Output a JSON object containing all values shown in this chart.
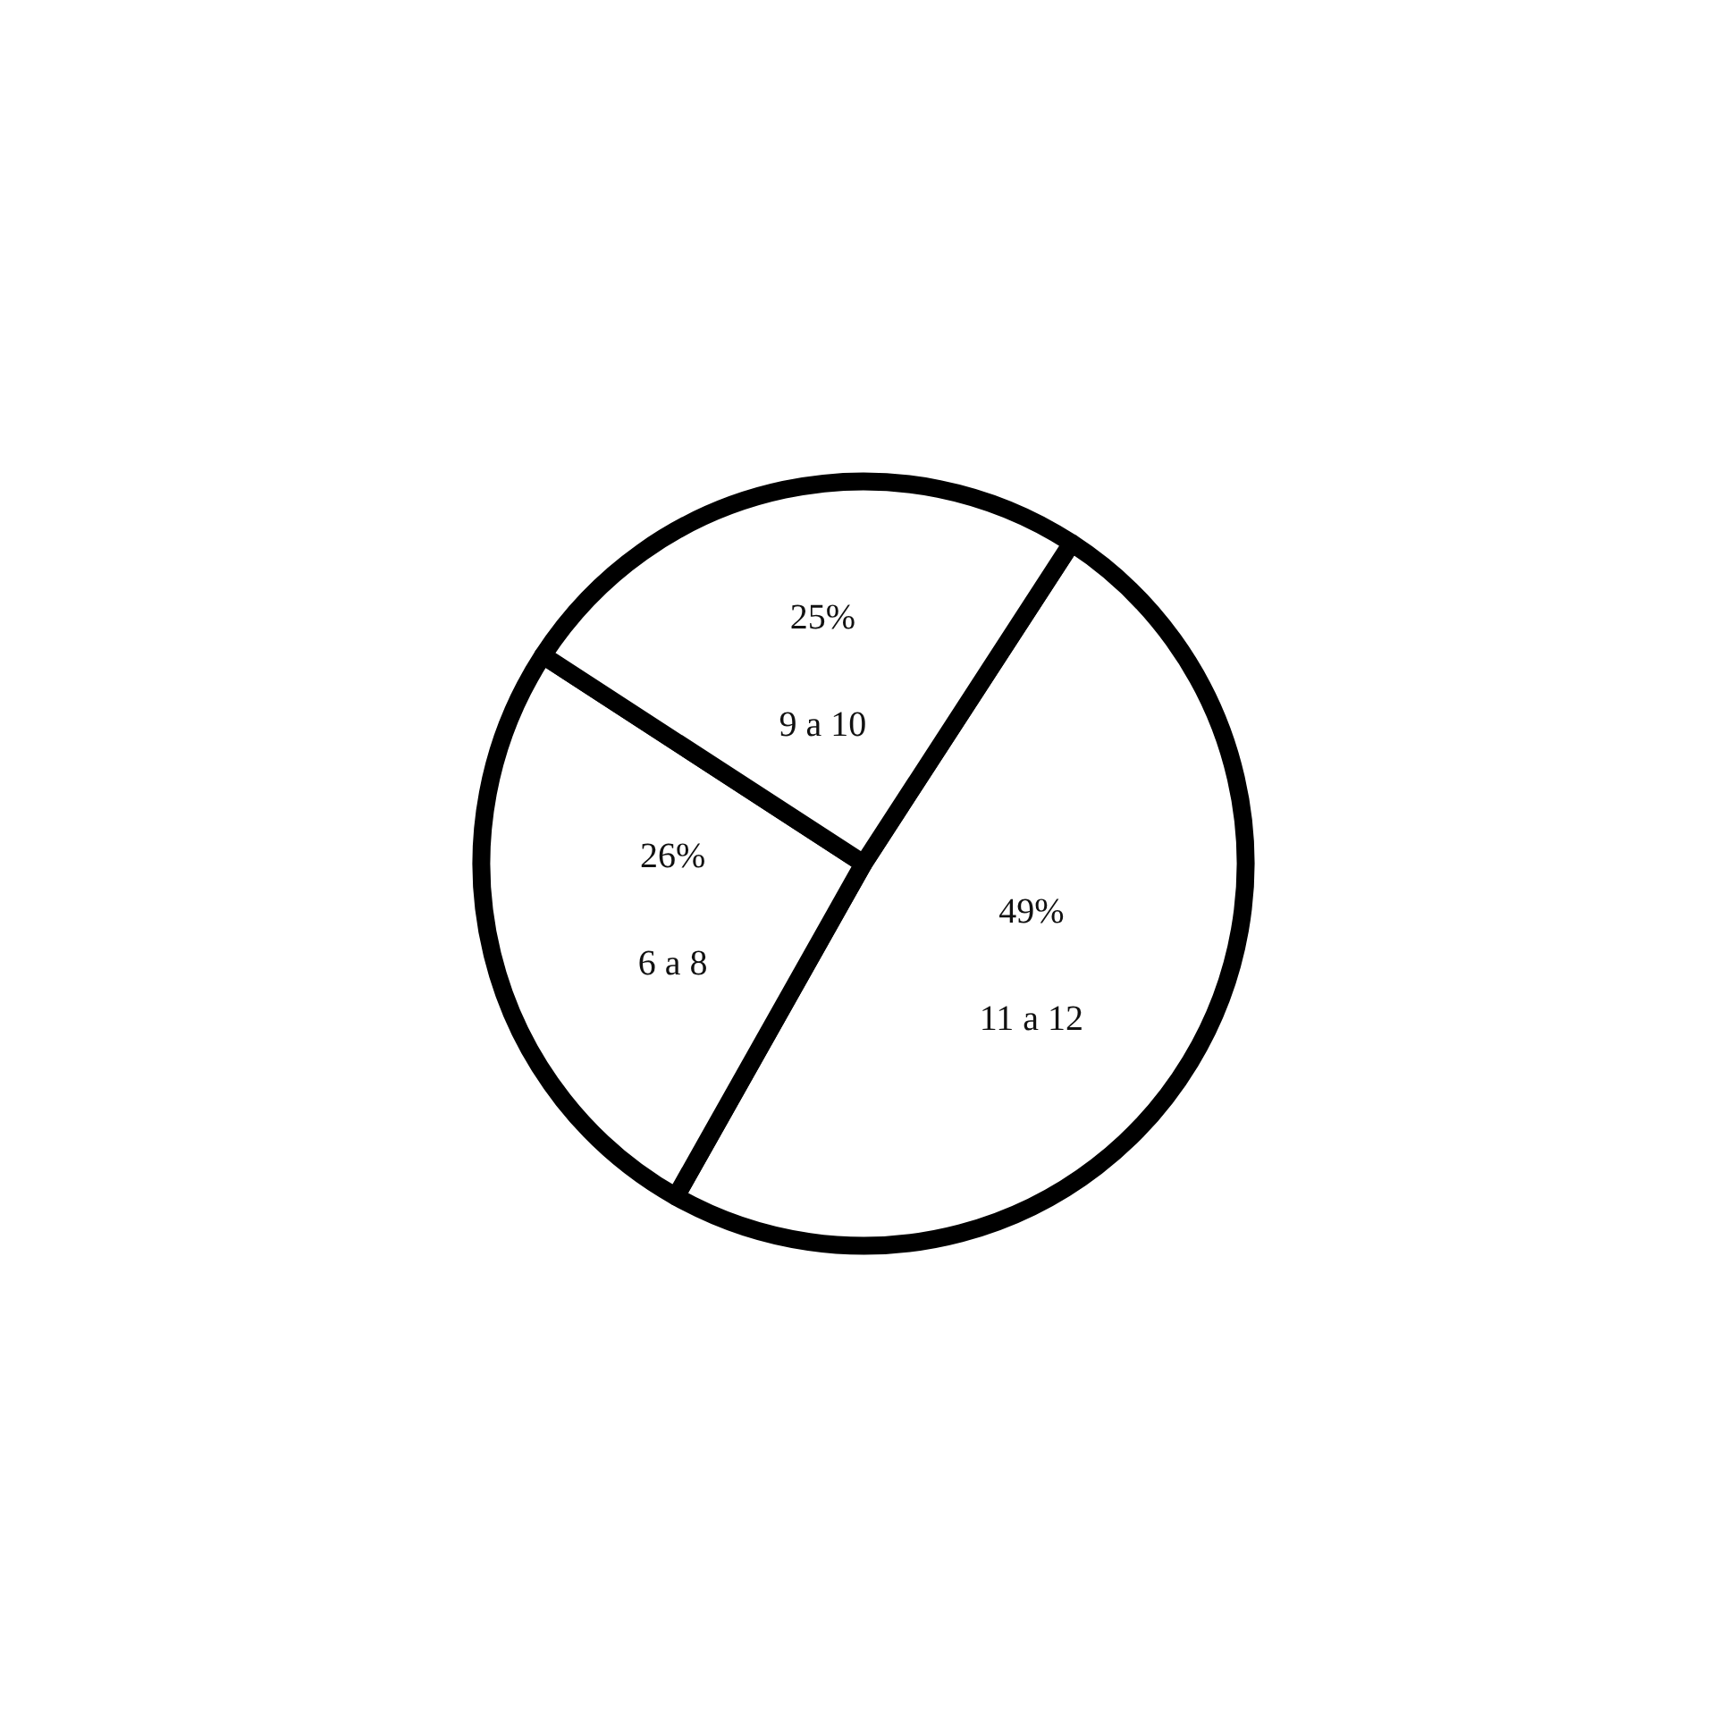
{
  "chart_data": {
    "type": "pie",
    "categories": [
      "11 a 12",
      "6 a 8",
      "9 a 10"
    ],
    "values": [
      49,
      26,
      25
    ],
    "value_labels": [
      "49%",
      "26%",
      "25%"
    ],
    "colors": [
      "#ffffff",
      "#ffffff",
      "#ffffff"
    ],
    "legend": false
  }
}
